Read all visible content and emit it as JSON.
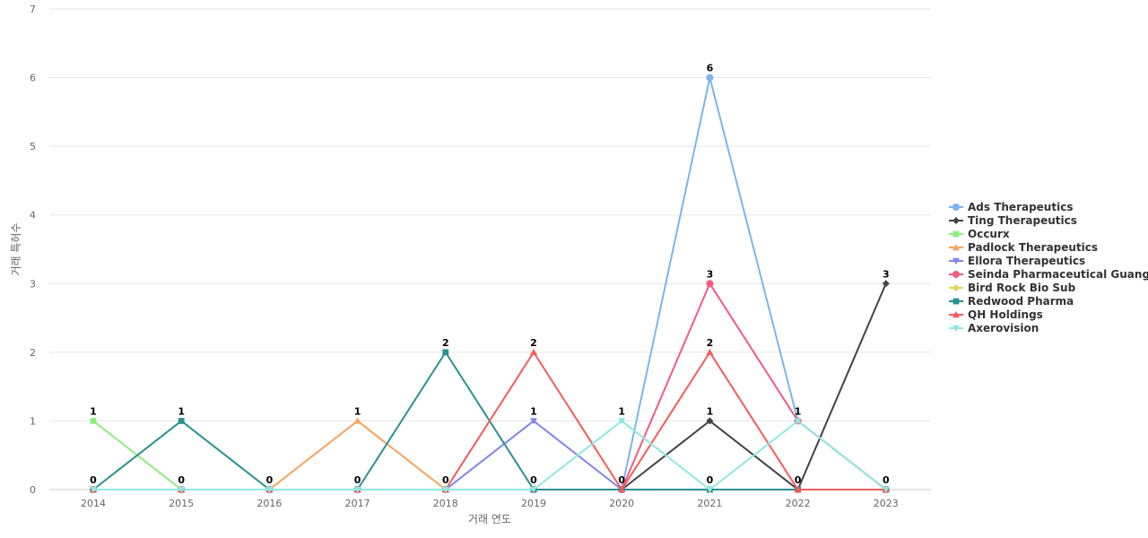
{
  "chart_data": {
    "type": "line",
    "xlabel": "거래 연도",
    "ylabel": "거래 특허수",
    "categories": [
      "2014",
      "2015",
      "2016",
      "2017",
      "2018",
      "2019",
      "2020",
      "2021",
      "2022",
      "2023"
    ],
    "ylim": [
      0,
      7
    ],
    "yticks": [
      0,
      1,
      2,
      3,
      4,
      5,
      6,
      7
    ],
    "grid": true,
    "legend_position": "right",
    "series": [
      {
        "name": "Ads Therapeutics",
        "color": "#7cb5ec",
        "marker": "circle",
        "values": [
          0,
          0,
          0,
          0,
          0,
          0,
          0,
          6,
          1,
          0
        ]
      },
      {
        "name": "Ting Therapeutics",
        "color": "#434348",
        "marker": "diamond",
        "values": [
          0,
          0,
          0,
          0,
          0,
          0,
          0,
          1,
          0,
          3
        ]
      },
      {
        "name": "Occurx",
        "color": "#90ed7d",
        "marker": "square",
        "values": [
          1,
          0,
          0,
          0,
          0,
          0,
          0,
          0,
          0,
          0
        ]
      },
      {
        "name": "Padlock Therapeutics",
        "color": "#f7a35c",
        "marker": "triangle",
        "values": [
          0,
          0,
          0,
          1,
          0,
          0,
          0,
          0,
          0,
          0
        ]
      },
      {
        "name": "Ellora Therapeutics",
        "color": "#8085e9",
        "marker": "triangle-down",
        "values": [
          0,
          0,
          0,
          0,
          0,
          1,
          0,
          0,
          0,
          0
        ]
      },
      {
        "name": "Seinda Pharmaceutical Guang...",
        "color": "#f15c80",
        "marker": "circle",
        "values": [
          0,
          0,
          0,
          0,
          0,
          0,
          0,
          3,
          1,
          0
        ]
      },
      {
        "name": "Bird Rock Bio Sub",
        "color": "#e4d354",
        "marker": "diamond",
        "values": [
          0,
          0,
          0,
          0,
          0,
          0,
          0,
          0,
          0,
          0
        ]
      },
      {
        "name": "Redwood Pharma",
        "color": "#2b908f",
        "marker": "square",
        "values": [
          0,
          1,
          0,
          0,
          2,
          0,
          0,
          0,
          0,
          0
        ]
      },
      {
        "name": "QH Holdings",
        "color": "#f45b5b",
        "marker": "triangle",
        "values": [
          0,
          0,
          0,
          0,
          0,
          2,
          0,
          2,
          0,
          0
        ]
      },
      {
        "name": "Axerovision",
        "color": "#91e8e1",
        "marker": "triangle-down",
        "values": [
          0,
          0,
          0,
          0,
          0,
          0,
          1,
          0,
          1,
          0
        ]
      }
    ],
    "data_labels": [
      {
        "x": "2014",
        "y": 1,
        "text": "1"
      },
      {
        "x": "2014",
        "y": 0,
        "text": "0"
      },
      {
        "x": "2015",
        "y": 1,
        "text": "1"
      },
      {
        "x": "2015",
        "y": 0,
        "text": "0"
      },
      {
        "x": "2016",
        "y": 0,
        "text": "0"
      },
      {
        "x": "2017",
        "y": 1,
        "text": "1"
      },
      {
        "x": "2017",
        "y": 0,
        "text": "0"
      },
      {
        "x": "2018",
        "y": 2,
        "text": "2"
      },
      {
        "x": "2018",
        "y": 0,
        "text": "0"
      },
      {
        "x": "2019",
        "y": 2,
        "text": "2"
      },
      {
        "x": "2019",
        "y": 1,
        "text": "1"
      },
      {
        "x": "2019",
        "y": 0,
        "text": "0"
      },
      {
        "x": "2020",
        "y": 1,
        "text": "1"
      },
      {
        "x": "2020",
        "y": 0,
        "text": "0"
      },
      {
        "x": "2021",
        "y": 6,
        "text": "6"
      },
      {
        "x": "2021",
        "y": 3,
        "text": "3"
      },
      {
        "x": "2021",
        "y": 2,
        "text": "2"
      },
      {
        "x": "2021",
        "y": 1,
        "text": "1"
      },
      {
        "x": "2021",
        "y": 0,
        "text": "0"
      },
      {
        "x": "2022",
        "y": 1,
        "text": "1"
      },
      {
        "x": "2022",
        "y": 0,
        "text": "0"
      },
      {
        "x": "2023",
        "y": 3,
        "text": "3"
      },
      {
        "x": "2023",
        "y": 0,
        "text": "0"
      }
    ]
  }
}
